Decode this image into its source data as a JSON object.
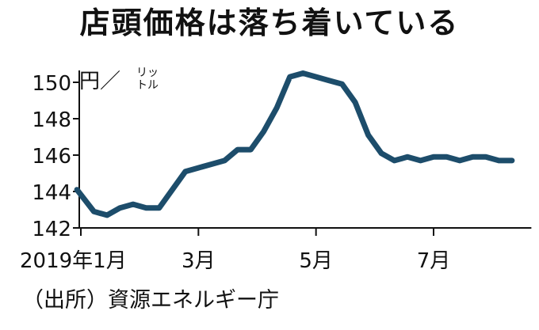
{
  "title": "店頭価格は落ち着いている",
  "source": "（出所）資源エネルギー庁",
  "colors": {
    "line": "#1d4d6b",
    "axis": "#111111",
    "text": "#111111",
    "background": "#ffffff"
  },
  "chart_data": {
    "type": "line",
    "title": "店頭価格は落ち着いている",
    "unit_main": "円／",
    "unit_sub": [
      "リッ",
      "トル"
    ],
    "xlabel": "",
    "ylabel": "",
    "ylim": [
      142,
      151
    ],
    "yticks": [
      142,
      144,
      146,
      148,
      150
    ],
    "xlim": [
      0,
      34
    ],
    "xticks": [
      {
        "x": 0,
        "label": "2019年1月"
      },
      {
        "x": 9,
        "label": "3月"
      },
      {
        "x": 18,
        "label": "5月"
      },
      {
        "x": 27,
        "label": "7月"
      }
    ],
    "grid": false,
    "legend": "none",
    "series": [
      {
        "x": [
          -0.3,
          1,
          2,
          3,
          4,
          5,
          6,
          7,
          8,
          9,
          10,
          11,
          12,
          13,
          14,
          15,
          16,
          17,
          18,
          19,
          20,
          21,
          22,
          23,
          24,
          25,
          26,
          27,
          28,
          29,
          30,
          31,
          32,
          33
        ],
        "values": [
          144.1,
          142.9,
          142.7,
          143.1,
          143.3,
          143.1,
          143.1,
          144.1,
          145.1,
          145.3,
          145.5,
          145.7,
          146.3,
          146.3,
          147.3,
          148.6,
          150.3,
          150.5,
          150.3,
          150.1,
          149.9,
          148.9,
          147.1,
          146.1,
          145.7,
          145.9,
          145.7,
          145.9,
          145.9,
          145.7,
          145.9,
          145.9,
          145.7,
          145.7
        ]
      }
    ]
  }
}
